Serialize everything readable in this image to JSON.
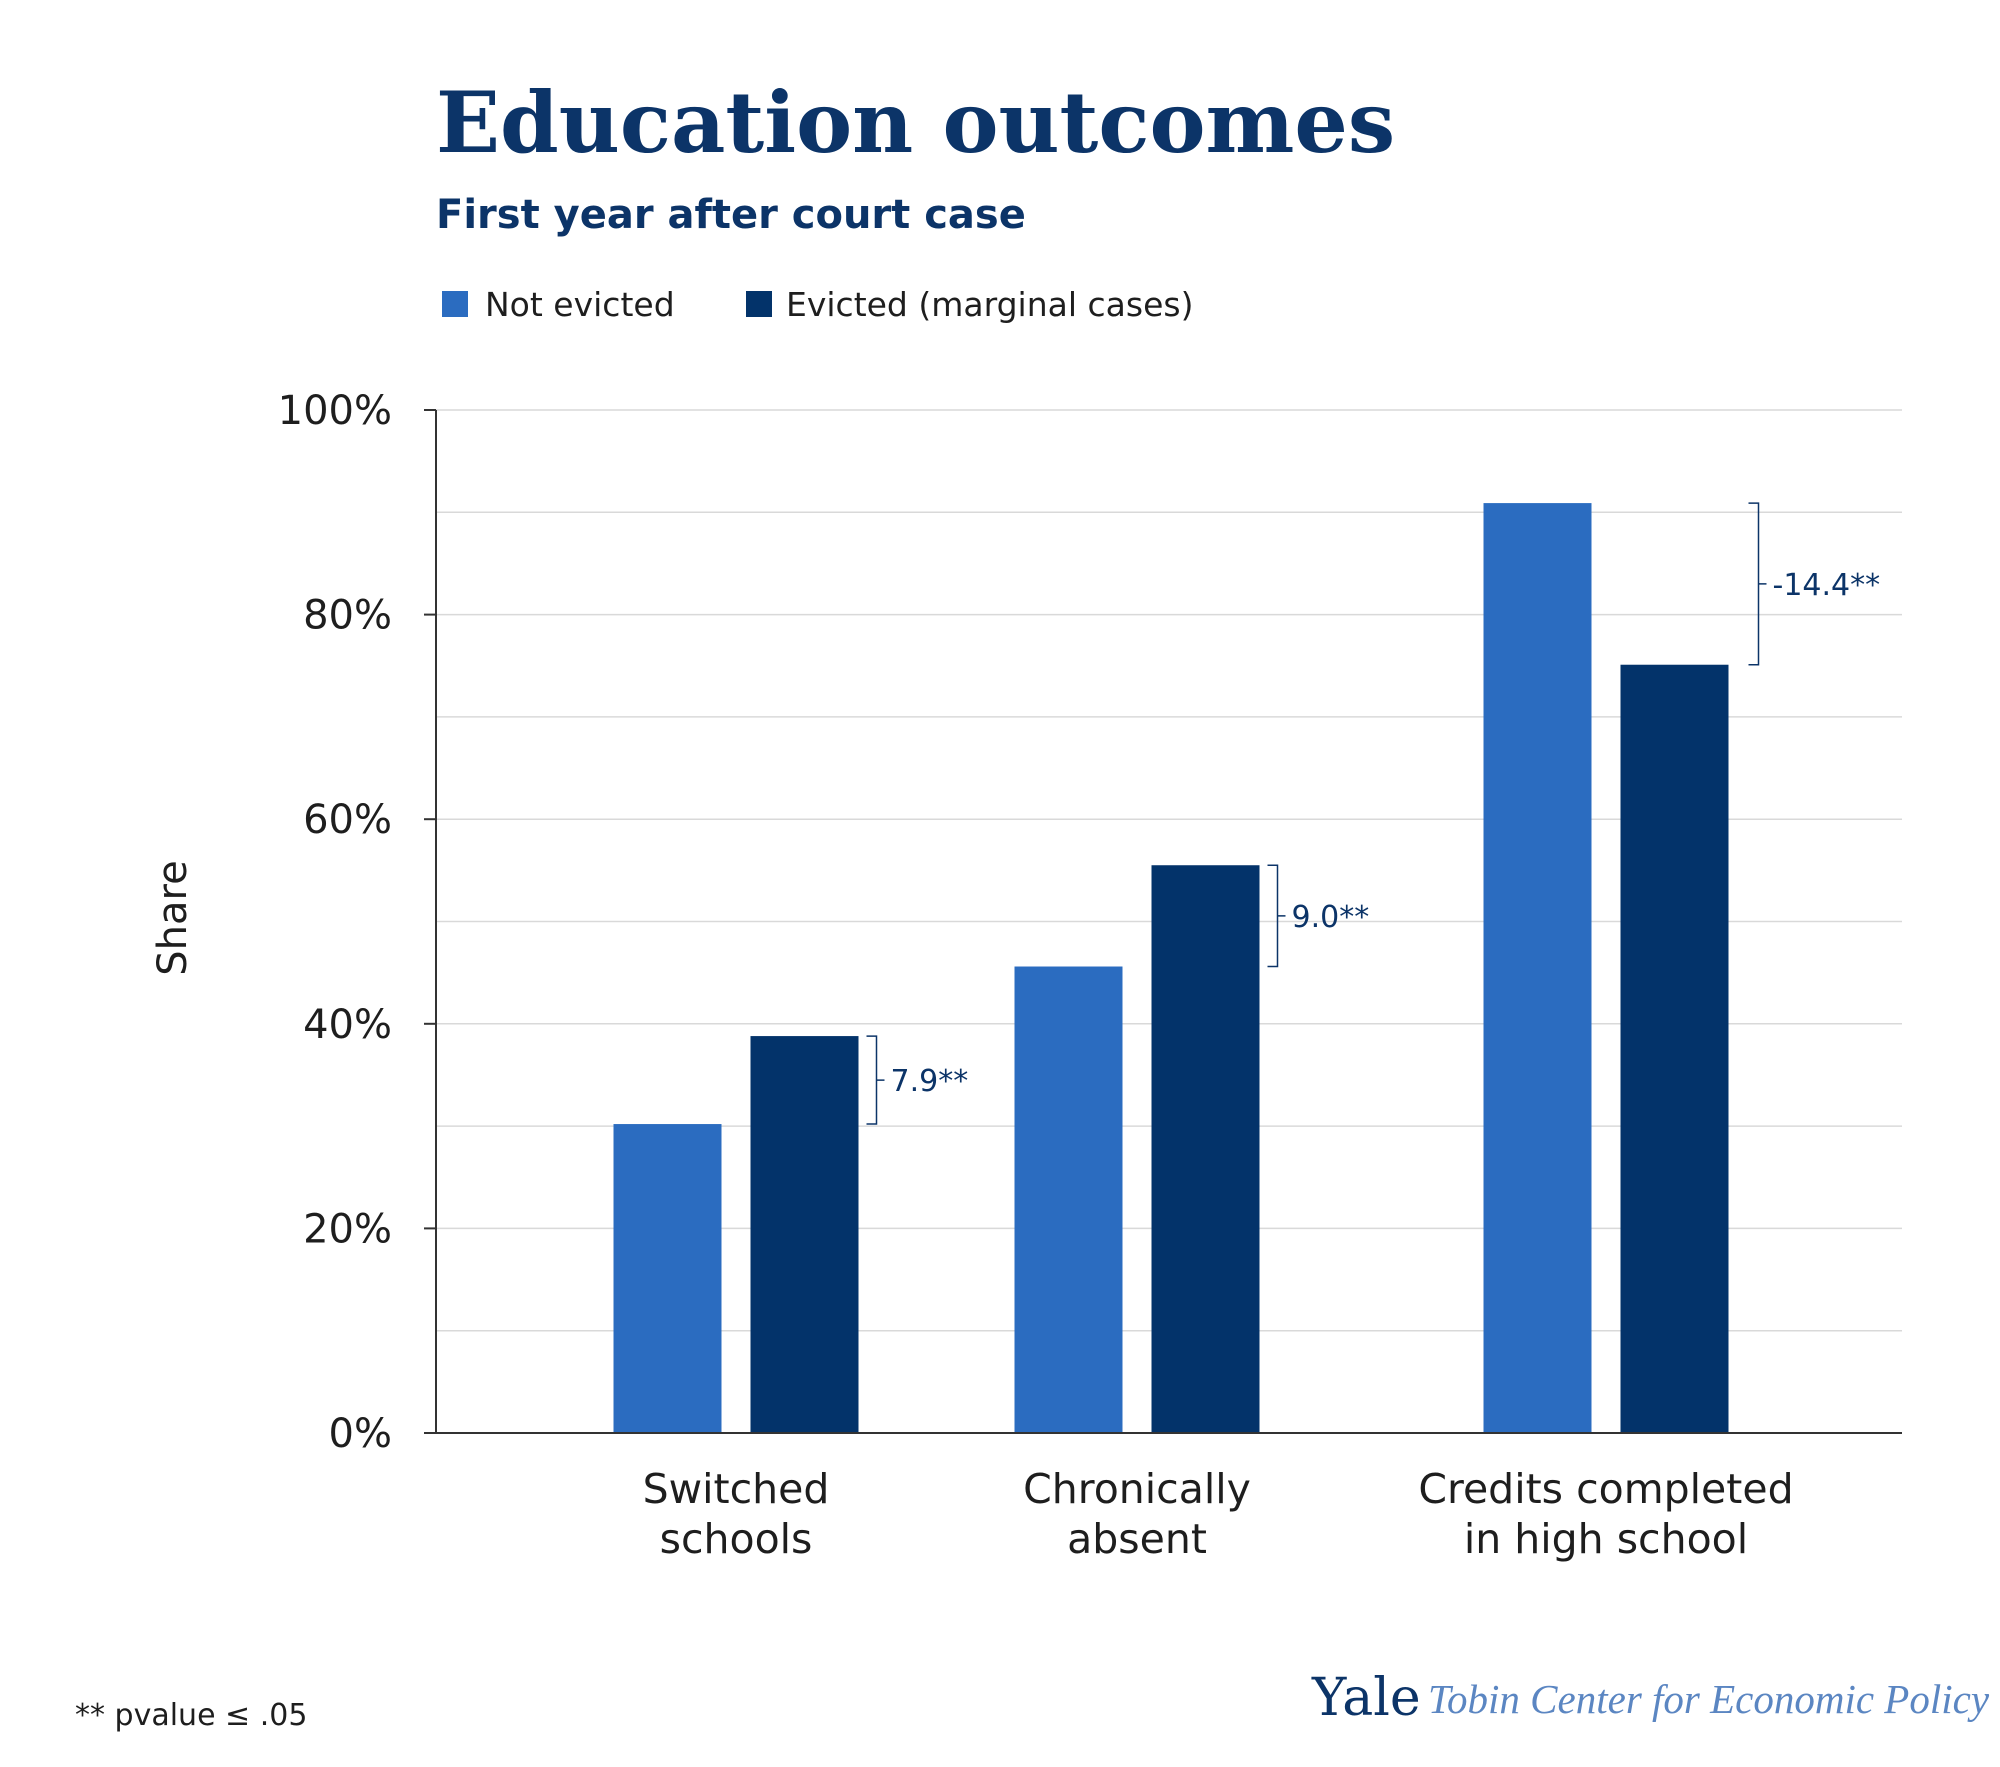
{
  "chart_data": {
    "type": "bar",
    "title": "Education outcomes",
    "subtitle": "First year after court case",
    "ylabel": "Share",
    "ylim": [
      0,
      100
    ],
    "yticks": [
      0,
      20,
      40,
      60,
      80,
      100
    ],
    "ytick_labels": [
      "0%",
      "20%",
      "40%",
      "60%",
      "80%",
      "100%"
    ],
    "grid": true,
    "legend_position": "top-left",
    "categories": [
      [
        "Switched",
        "schools"
      ],
      [
        "Chronically",
        "absent"
      ],
      [
        "Credits completed",
        "in high school"
      ]
    ],
    "series": [
      {
        "name": "Not evicted",
        "color": "#2b6cc0",
        "values": [
          30.2,
          45.6,
          90.9
        ]
      },
      {
        "name": "Evicted (marginal cases)",
        "color": "#03336a",
        "values": [
          38.8,
          55.5,
          75.1
        ]
      }
    ],
    "annotations": [
      "7.9**",
      "9.0**",
      "-14.4**"
    ]
  },
  "footnote": "** pvalue ≤ .05",
  "brand": {
    "name": "Yale",
    "org": "Tobin Center for Economic Policy"
  }
}
